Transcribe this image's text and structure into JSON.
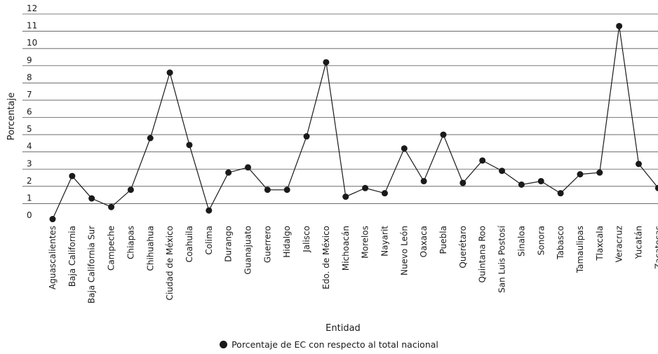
{
  "chart_data": {
    "type": "line",
    "xlabel": "Entidad",
    "ylabel": "Porcentaje",
    "ylim": [
      0,
      12
    ],
    "yticks": [
      0,
      1,
      2,
      3,
      4,
      5,
      6,
      7,
      8,
      9,
      10,
      11,
      12
    ],
    "grid": "horizontal",
    "legend_position": "bottom-center",
    "categories": [
      "Aguascalientes",
      "Baja California",
      "Baja California Sur",
      "Campeche",
      "Chiapas",
      "Chihuahua",
      "Ciudad de México",
      "Coahuila",
      "Colima",
      "Durango",
      "Guanajuato",
      "Guerrero",
      "Hidalgo",
      "Jalisco",
      "Edo. de México",
      "Michoacán",
      "Morelos",
      "Nayarit",
      "Nuevo León",
      "Oaxaca",
      "Puebla",
      "Querétaro",
      "Quintana Roo",
      "San Luis Postosí",
      "Sinaloa",
      "Sonora",
      "Tabasco",
      "Tamaulipas",
      "Tlaxcala",
      "Veracruz",
      "Yucatán",
      "Zacatecas"
    ],
    "series": [
      {
        "name": "Porcentaje de EC con respecto al total nacional",
        "color": "#1a1a1a",
        "values": [
          0.1,
          2.6,
          1.3,
          0.8,
          1.8,
          4.8,
          8.6,
          4.4,
          0.6,
          2.8,
          3.1,
          1.8,
          1.8,
          4.9,
          9.2,
          1.4,
          1.9,
          1.6,
          4.2,
          2.3,
          5.0,
          2.2,
          3.5,
          2.9,
          2.1,
          2.3,
          1.6,
          2.7,
          2.8,
          11.3,
          3.3,
          1.9
        ]
      }
    ]
  },
  "legend": {
    "label": "Porcentaje de EC con respecto al total nacional"
  }
}
